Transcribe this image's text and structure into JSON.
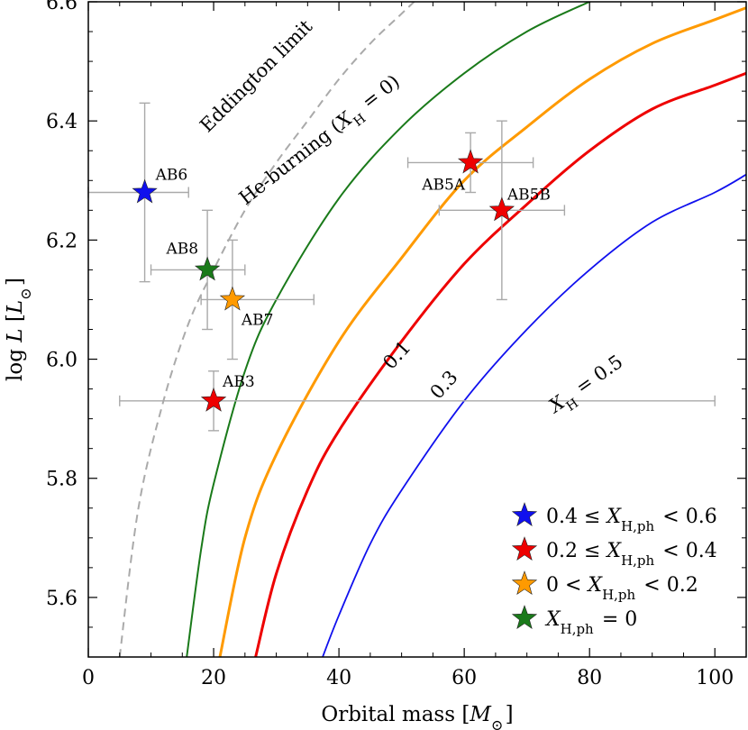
{
  "chart_data": {
    "type": "scatter",
    "xlabel": "Orbital mass [M⊙]",
    "ylabel": "log L [L⊙]",
    "xlim": [
      0,
      105
    ],
    "ylim": [
      5.5,
      6.6
    ],
    "x_ticks": [
      "0",
      "20",
      "40",
      "60",
      "80",
      "100"
    ],
    "y_ticks": [
      "5.6",
      "5.8",
      "6.0",
      "6.2",
      "6.4",
      "6.6"
    ],
    "grid": false,
    "legend_position": "bottom-right",
    "curves": [
      {
        "label": "Eddington limit",
        "style": "dashed",
        "color": "#aaaaaa",
        "x": [
          5,
          8,
          12,
          16,
          20,
          25,
          30,
          35,
          40,
          45,
          50,
          56
        ],
        "y": [
          5.5,
          5.75,
          5.93,
          6.06,
          6.15,
          6.25,
          6.33,
          6.4,
          6.47,
          6.53,
          6.58,
          6.64
        ]
      },
      {
        "label": "He-burning (XH = 0)",
        "color": "#1a7a1a",
        "x": [
          15.7,
          18,
          20,
          25,
          30,
          40,
          50,
          60,
          70,
          80,
          85
        ],
        "y": [
          5.5,
          5.68,
          5.79,
          5.98,
          6.1,
          6.27,
          6.39,
          6.48,
          6.55,
          6.6,
          6.62
        ]
      },
      {
        "label": "0.1",
        "color": "#ff9a00",
        "x": [
          21,
          25,
          30,
          40,
          50,
          60,
          70,
          80,
          90,
          100,
          105
        ],
        "y": [
          5.5,
          5.7,
          5.84,
          6.03,
          6.17,
          6.3,
          6.39,
          6.47,
          6.53,
          6.57,
          6.59
        ]
      },
      {
        "label": "0.3",
        "color": "#ee0000",
        "x": [
          26.7,
          30,
          35,
          40,
          50,
          60,
          70,
          80,
          90,
          100,
          105
        ],
        "y": [
          5.5,
          5.64,
          5.78,
          5.88,
          6.03,
          6.16,
          6.26,
          6.35,
          6.42,
          6.46,
          6.48
        ]
      },
      {
        "label": "XH = 0.5",
        "color": "#1010ee",
        "x": [
          37.4,
          40,
          45,
          50,
          60,
          70,
          80,
          90,
          100,
          105
        ],
        "y": [
          5.5,
          5.57,
          5.69,
          5.78,
          5.93,
          6.05,
          6.15,
          6.23,
          6.28,
          6.31
        ]
      }
    ],
    "points": [
      {
        "name": "AB6",
        "x": 9,
        "y": 6.28,
        "xerr": [
          0,
          16
        ],
        "yerr": [
          6.13,
          6.43
        ],
        "group": 0
      },
      {
        "name": "AB8",
        "x": 19,
        "y": 6.15,
        "xerr": [
          10,
          25
        ],
        "yerr": [
          6.05,
          6.25
        ],
        "group": 3
      },
      {
        "name": "AB7",
        "x": 23,
        "y": 6.1,
        "xerr": [
          18,
          36
        ],
        "yerr": [
          6.0,
          6.2
        ],
        "group": 2
      },
      {
        "name": "AB3",
        "x": 20,
        "y": 5.93,
        "xerr": [
          5,
          100
        ],
        "yerr": [
          5.88,
          5.98
        ],
        "group": 1
      },
      {
        "name": "AB5A",
        "x": 61,
        "y": 6.33,
        "xerr": [
          51,
          71
        ],
        "yerr": [
          6.28,
          6.38
        ],
        "group": 1
      },
      {
        "name": "AB5B",
        "x": 66,
        "y": 6.25,
        "xerr": [
          56,
          76
        ],
        "yerr": [
          6.1,
          6.4
        ],
        "group": 1
      }
    ],
    "legend": [
      {
        "label": "0.4 ≤ XH,ph < 0.6",
        "color": "#1010ee"
      },
      {
        "label": "0.2 ≤ XH,ph < 0.4",
        "color": "#ee0000"
      },
      {
        "label": "0 < XH,ph < 0.2",
        "color": "#ff9a00"
      },
      {
        "label": "XH,ph = 0",
        "color": "#1a7a1a"
      }
    ]
  }
}
